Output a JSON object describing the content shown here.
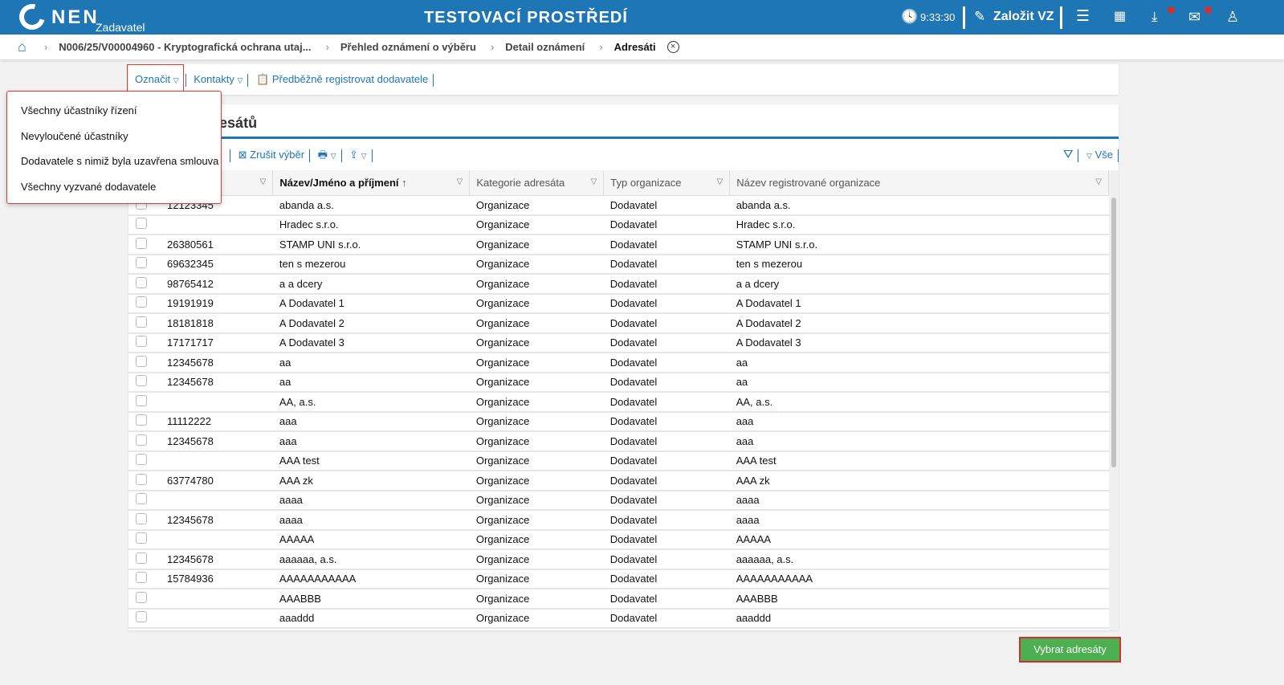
{
  "header": {
    "logo": "NEN",
    "role": "Zadavatel",
    "title": "TESTOVACÍ PROSTŘEDÍ",
    "time": "9:33:30",
    "create_label": "Založit VZ",
    "accent": "#1f76b5"
  },
  "breadcrumb": [
    "N006/25/V00004960 - Kryptografická ochrana utaj...",
    "Přehled oznámení o výběru",
    "Detail oznámení",
    "Adresáti"
  ],
  "toolbar": {
    "mark": "Označit",
    "contacts": "Kontakty",
    "preregister": "Předběžně registrovat dodavatele"
  },
  "menu": [
    "Všechny účastníky řízení",
    "Nevyloučené účastníky",
    "Dodavatele s nimiž byla uzavřena smlouva",
    "Všechny vyzvané dodavatele"
  ],
  "table": {
    "title": "Seznam adresátů",
    "cancel_selection": "Zrušit výběr",
    "all": "Vše",
    "columns": [
      "",
      "Název/Jméno a příjmení",
      "Kategorie adresáta",
      "Typ organizace",
      "Název registrované organizace"
    ],
    "rows": [
      [
        "12123345",
        "abanda a.s.",
        "Organizace",
        "Dodavatel",
        "abanda a.s."
      ],
      [
        "",
        "Hradec s.r.o.",
        "Organizace",
        "Dodavatel",
        "Hradec s.r.o."
      ],
      [
        "26380561",
        "STAMP UNI s.r.o.",
        "Organizace",
        "Dodavatel",
        "STAMP UNI s.r.o."
      ],
      [
        "69632345",
        "ten s mezerou",
        "Organizace",
        "Dodavatel",
        "ten s mezerou"
      ],
      [
        "98765412",
        "a a dcery",
        "Organizace",
        "Dodavatel",
        "a a dcery"
      ],
      [
        "19191919",
        "A Dodavatel 1",
        "Organizace",
        "Dodavatel",
        "A Dodavatel 1"
      ],
      [
        "18181818",
        "A Dodavatel 2",
        "Organizace",
        "Dodavatel",
        "A Dodavatel 2"
      ],
      [
        "17171717",
        "A Dodavatel 3",
        "Organizace",
        "Dodavatel",
        "A Dodavatel 3"
      ],
      [
        "12345678",
        "aa",
        "Organizace",
        "Dodavatel",
        "aa"
      ],
      [
        "12345678",
        "aa",
        "Organizace",
        "Dodavatel",
        "aa"
      ],
      [
        "",
        "AA, a.s.",
        "Organizace",
        "Dodavatel",
        "AA, a.s."
      ],
      [
        "11112222",
        "aaa",
        "Organizace",
        "Dodavatel",
        "aaa"
      ],
      [
        "12345678",
        "aaa",
        "Organizace",
        "Dodavatel",
        "aaa"
      ],
      [
        "",
        "AAA test",
        "Organizace",
        "Dodavatel",
        "AAA test"
      ],
      [
        "63774780",
        "AAA zk",
        "Organizace",
        "Dodavatel",
        "AAA zk"
      ],
      [
        "",
        "aaaa",
        "Organizace",
        "Dodavatel",
        "aaaa"
      ],
      [
        "12345678",
        "aaaa",
        "Organizace",
        "Dodavatel",
        "aaaa"
      ],
      [
        "",
        "AAAAA",
        "Organizace",
        "Dodavatel",
        "AAAAA"
      ],
      [
        "12345678",
        "aaaaaa, a.s.",
        "Organizace",
        "Dodavatel",
        "aaaaaa, a.s."
      ],
      [
        "15784936",
        "AAAAAAAAAAA",
        "Organizace",
        "Dodavatel",
        "AAAAAAAAAAA"
      ],
      [
        "",
        "AAABBB",
        "Organizace",
        "Dodavatel",
        "AAABBB"
      ],
      [
        "",
        "aaaddd",
        "Organizace",
        "Dodavatel",
        "aaaddd"
      ]
    ]
  },
  "submit": "Vybrat adresáty"
}
